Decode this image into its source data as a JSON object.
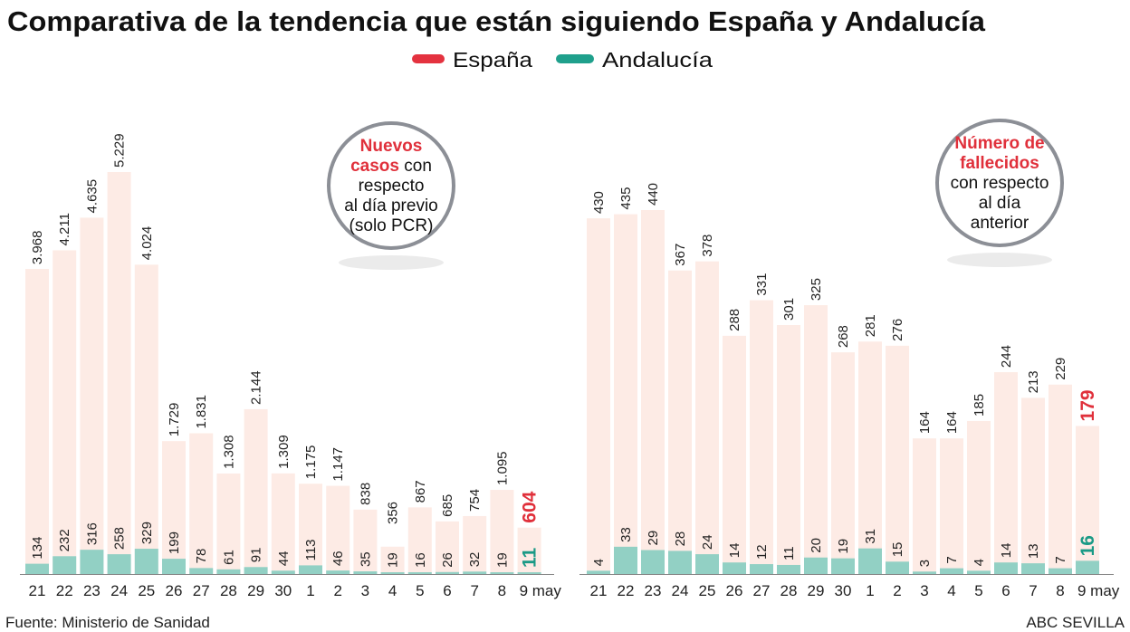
{
  "title": "Comparativa de la tendencia que están siguiendo España y Andalucía",
  "legend": [
    {
      "label": "España",
      "color": "#e4323f"
    },
    {
      "label": "Andalucía",
      "color": "#1fa08c"
    }
  ],
  "colors": {
    "spain_bar": "#fdebe5",
    "andalucia_bar": "#92d0c4",
    "spain_highlight": "#e0303b",
    "andalucia_highlight": "#1a9a86"
  },
  "source": "Fuente: Ministerio de Sanidad",
  "credit": "ABC SEVILLA",
  "chart_data": [
    {
      "type": "bar",
      "circle_label": {
        "highlight": [
          "Nuevos",
          "casos"
        ],
        "rest": [
          " con",
          "respecto",
          "al día previo",
          "(solo PCR)"
        ]
      },
      "categories": [
        "21",
        "22",
        "23",
        "24",
        "25",
        "26",
        "27",
        "28",
        "29",
        "30",
        "1",
        "2",
        "3",
        "4",
        "5",
        "6",
        "7",
        "8",
        "9 may"
      ],
      "series": [
        {
          "name": "España",
          "values": [
            3968,
            4211,
            4635,
            5229,
            4024,
            1729,
            1831,
            1308,
            2144,
            1309,
            1175,
            1147,
            838,
            356,
            867,
            685,
            754,
            1095,
            604
          ],
          "labels": [
            "3.968",
            "4.211",
            "4.635",
            "5.229",
            "4.024",
            "1.729",
            "1.831",
            "1.308",
            "2.144",
            "1.309",
            "1.175",
            "1.147",
            "838",
            "356",
            "867",
            "685",
            "754",
            "1.095",
            "604"
          ]
        },
        {
          "name": "Andalucía",
          "values": [
            134,
            232,
            316,
            258,
            329,
            199,
            78,
            61,
            91,
            44,
            113,
            46,
            35,
            19,
            16,
            26,
            32,
            19,
            11
          ],
          "labels": [
            "134",
            "232",
            "316",
            "258",
            "329",
            "199",
            "78",
            "61",
            "91",
            "44",
            "113",
            "46",
            "35",
            "19",
            "16",
            "26",
            "32",
            "19",
            "11"
          ]
        }
      ],
      "overlap": true,
      "ylim": [
        0,
        5229
      ]
    },
    {
      "type": "bar",
      "circle_label": {
        "highlight": [
          "Número de",
          "fallecidos"
        ],
        "rest": [
          "",
          "con respecto",
          "al día",
          "anterior"
        ]
      },
      "categories": [
        "21",
        "22",
        "23",
        "24",
        "25",
        "26",
        "27",
        "28",
        "29",
        "30",
        "1",
        "2",
        "3",
        "4",
        "5",
        "6",
        "7",
        "8",
        "9 may"
      ],
      "series": [
        {
          "name": "España",
          "values": [
            430,
            435,
            440,
            367,
            378,
            288,
            331,
            301,
            325,
            268,
            281,
            276,
            164,
            164,
            185,
            244,
            213,
            229,
            179
          ],
          "labels": [
            "430",
            "435",
            "440",
            "367",
            "378",
            "288",
            "331",
            "301",
            "325",
            "268",
            "281",
            "276",
            "164",
            "164",
            "185",
            "244",
            "213",
            "229",
            "179"
          ]
        },
        {
          "name": "Andalucía",
          "values": [
            4,
            33,
            29,
            28,
            24,
            14,
            12,
            11,
            20,
            19,
            31,
            15,
            3,
            7,
            4,
            14,
            13,
            7,
            16
          ],
          "labels": [
            "4",
            "33",
            "29",
            "28",
            "24",
            "14",
            "12",
            "11",
            "20",
            "19",
            "31",
            "15",
            "3",
            "7",
            "4",
            "14",
            "13",
            "7",
            "16"
          ]
        }
      ],
      "overlap": true,
      "ylim": [
        0,
        440
      ]
    }
  ]
}
